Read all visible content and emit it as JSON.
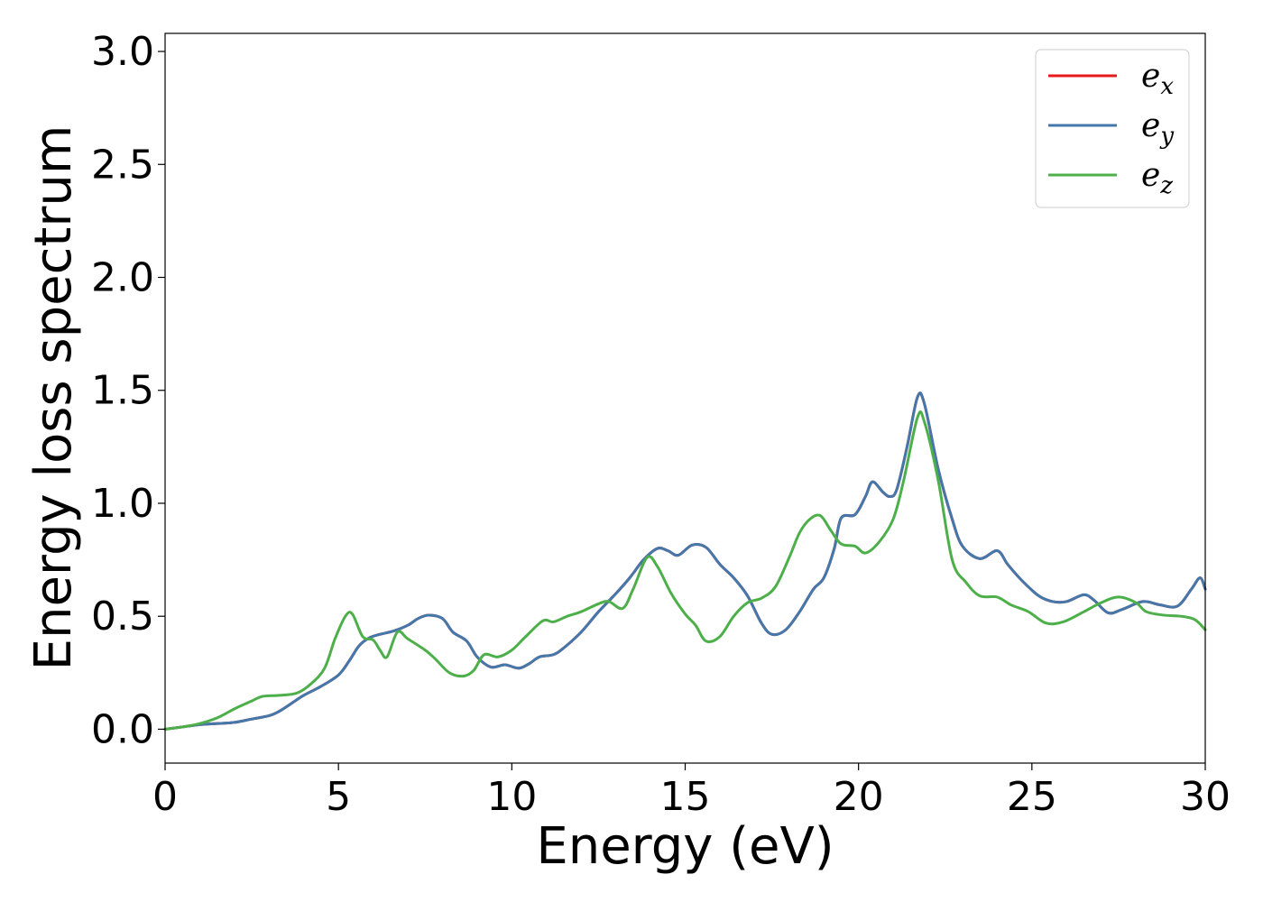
{
  "chart_data": {
    "type": "line",
    "xlabel": "Energy (eV)",
    "ylabel": "Energy loss spectrum",
    "xlim": [
      0,
      30
    ],
    "ylim": [
      -0.15,
      3.08
    ],
    "xticks": [
      0,
      5,
      10,
      15,
      20,
      25,
      30
    ],
    "yticks": [
      0.0,
      0.5,
      1.0,
      1.5,
      2.0,
      2.5,
      3.0
    ],
    "xtick_labels": [
      "0",
      "5",
      "10",
      "15",
      "20",
      "25",
      "30"
    ],
    "ytick_labels": [
      "0.0",
      "0.5",
      "1.0",
      "1.5",
      "2.0",
      "2.5",
      "3.0"
    ],
    "grid": false,
    "legend_position": "top-right",
    "series": [
      {
        "name": "e_x",
        "legend_base": "e",
        "legend_sub": "x",
        "color": "#e41a1c",
        "points": [
          [
            0,
            0.0
          ],
          [
            0.5,
            0.01
          ],
          [
            1,
            0.02
          ],
          [
            1.5,
            0.025
          ],
          [
            2,
            0.03
          ],
          [
            2.5,
            0.045
          ],
          [
            3,
            0.06
          ],
          [
            3.3,
            0.08
          ],
          [
            3.7,
            0.12
          ],
          [
            4,
            0.15
          ],
          [
            4.5,
            0.19
          ],
          [
            5,
            0.24
          ],
          [
            5.3,
            0.3
          ],
          [
            5.6,
            0.37
          ],
          [
            5.9,
            0.405
          ],
          [
            6.2,
            0.42
          ],
          [
            6.6,
            0.435
          ],
          [
            7,
            0.46
          ],
          [
            7.3,
            0.49
          ],
          [
            7.6,
            0.505
          ],
          [
            8,
            0.49
          ],
          [
            8.3,
            0.43
          ],
          [
            8.7,
            0.39
          ],
          [
            9,
            0.32
          ],
          [
            9.4,
            0.275
          ],
          [
            9.8,
            0.285
          ],
          [
            10.2,
            0.27
          ],
          [
            10.5,
            0.29
          ],
          [
            10.8,
            0.32
          ],
          [
            11.2,
            0.33
          ],
          [
            11.5,
            0.36
          ],
          [
            12,
            0.43
          ],
          [
            12.5,
            0.52
          ],
          [
            13,
            0.6
          ],
          [
            13.4,
            0.67
          ],
          [
            13.8,
            0.75
          ],
          [
            14.2,
            0.8
          ],
          [
            14.5,
            0.79
          ],
          [
            14.8,
            0.77
          ],
          [
            15.2,
            0.815
          ],
          [
            15.6,
            0.805
          ],
          [
            16,
            0.73
          ],
          [
            16.4,
            0.67
          ],
          [
            16.8,
            0.59
          ],
          [
            17.2,
            0.47
          ],
          [
            17.5,
            0.42
          ],
          [
            17.9,
            0.44
          ],
          [
            18.3,
            0.52
          ],
          [
            18.7,
            0.62
          ],
          [
            19,
            0.67
          ],
          [
            19.3,
            0.8
          ],
          [
            19.5,
            0.935
          ],
          [
            19.9,
            0.95
          ],
          [
            20.2,
            1.03
          ],
          [
            20.4,
            1.095
          ],
          [
            20.7,
            1.05
          ],
          [
            20.9,
            1.03
          ],
          [
            21.1,
            1.06
          ],
          [
            21.4,
            1.25
          ],
          [
            21.7,
            1.47
          ],
          [
            21.9,
            1.44
          ],
          [
            22.3,
            1.15
          ],
          [
            22.7,
            0.93
          ],
          [
            23,
            0.81
          ],
          [
            23.5,
            0.755
          ],
          [
            24,
            0.79
          ],
          [
            24.3,
            0.73
          ],
          [
            24.7,
            0.66
          ],
          [
            25.2,
            0.59
          ],
          [
            25.6,
            0.565
          ],
          [
            26,
            0.565
          ],
          [
            26.5,
            0.595
          ],
          [
            26.8,
            0.57
          ],
          [
            27.2,
            0.515
          ],
          [
            27.6,
            0.53
          ],
          [
            28.2,
            0.565
          ],
          [
            28.7,
            0.55
          ],
          [
            29.2,
            0.545
          ],
          [
            29.6,
            0.62
          ],
          [
            29.85,
            0.67
          ],
          [
            30,
            0.62
          ]
        ]
      },
      {
        "name": "e_y",
        "legend_base": "e",
        "legend_sub": "y",
        "color": "#4477aa",
        "points": [
          [
            0,
            0.0
          ],
          [
            0.5,
            0.01
          ],
          [
            1,
            0.02
          ],
          [
            1.5,
            0.025
          ],
          [
            2,
            0.03
          ],
          [
            2.5,
            0.045
          ],
          [
            3,
            0.06
          ],
          [
            3.3,
            0.08
          ],
          [
            3.7,
            0.12
          ],
          [
            4,
            0.15
          ],
          [
            4.5,
            0.19
          ],
          [
            5,
            0.24
          ],
          [
            5.3,
            0.3
          ],
          [
            5.6,
            0.37
          ],
          [
            5.9,
            0.405
          ],
          [
            6.2,
            0.42
          ],
          [
            6.6,
            0.435
          ],
          [
            7,
            0.46
          ],
          [
            7.3,
            0.49
          ],
          [
            7.6,
            0.505
          ],
          [
            8,
            0.49
          ],
          [
            8.3,
            0.43
          ],
          [
            8.7,
            0.39
          ],
          [
            9,
            0.32
          ],
          [
            9.4,
            0.275
          ],
          [
            9.8,
            0.285
          ],
          [
            10.2,
            0.27
          ],
          [
            10.5,
            0.29
          ],
          [
            10.8,
            0.32
          ],
          [
            11.2,
            0.33
          ],
          [
            11.5,
            0.36
          ],
          [
            12,
            0.43
          ],
          [
            12.5,
            0.52
          ],
          [
            13,
            0.6
          ],
          [
            13.4,
            0.67
          ],
          [
            13.8,
            0.75
          ],
          [
            14.2,
            0.8
          ],
          [
            14.5,
            0.79
          ],
          [
            14.8,
            0.77
          ],
          [
            15.2,
            0.815
          ],
          [
            15.6,
            0.805
          ],
          [
            16,
            0.73
          ],
          [
            16.4,
            0.67
          ],
          [
            16.8,
            0.59
          ],
          [
            17.2,
            0.47
          ],
          [
            17.5,
            0.42
          ],
          [
            17.9,
            0.44
          ],
          [
            18.3,
            0.52
          ],
          [
            18.7,
            0.62
          ],
          [
            19,
            0.67
          ],
          [
            19.3,
            0.8
          ],
          [
            19.5,
            0.935
          ],
          [
            19.9,
            0.95
          ],
          [
            20.2,
            1.03
          ],
          [
            20.4,
            1.095
          ],
          [
            20.7,
            1.05
          ],
          [
            20.9,
            1.03
          ],
          [
            21.1,
            1.06
          ],
          [
            21.4,
            1.25
          ],
          [
            21.7,
            1.47
          ],
          [
            21.9,
            1.44
          ],
          [
            22.3,
            1.15
          ],
          [
            22.7,
            0.93
          ],
          [
            23,
            0.81
          ],
          [
            23.5,
            0.755
          ],
          [
            24,
            0.79
          ],
          [
            24.3,
            0.73
          ],
          [
            24.7,
            0.66
          ],
          [
            25.2,
            0.59
          ],
          [
            25.6,
            0.565
          ],
          [
            26,
            0.565
          ],
          [
            26.5,
            0.595
          ],
          [
            26.8,
            0.57
          ],
          [
            27.2,
            0.515
          ],
          [
            27.6,
            0.53
          ],
          [
            28.2,
            0.565
          ],
          [
            28.7,
            0.55
          ],
          [
            29.2,
            0.545
          ],
          [
            29.6,
            0.62
          ],
          [
            29.85,
            0.67
          ],
          [
            30,
            0.62
          ]
        ]
      },
      {
        "name": "e_z",
        "legend_base": "e",
        "legend_sub": "z",
        "color": "#4daf4a",
        "points": [
          [
            0,
            0.0
          ],
          [
            0.5,
            0.01
          ],
          [
            1,
            0.025
          ],
          [
            1.5,
            0.05
          ],
          [
            2,
            0.09
          ],
          [
            2.5,
            0.125
          ],
          [
            2.8,
            0.145
          ],
          [
            3.3,
            0.15
          ],
          [
            3.8,
            0.16
          ],
          [
            4.2,
            0.2
          ],
          [
            4.6,
            0.27
          ],
          [
            4.9,
            0.4
          ],
          [
            5.2,
            0.5
          ],
          [
            5.4,
            0.51
          ],
          [
            5.7,
            0.41
          ],
          [
            6,
            0.395
          ],
          [
            6.2,
            0.35
          ],
          [
            6.4,
            0.32
          ],
          [
            6.7,
            0.43
          ],
          [
            7,
            0.4
          ],
          [
            7.5,
            0.35
          ],
          [
            7.8,
            0.31
          ],
          [
            8.2,
            0.25
          ],
          [
            8.6,
            0.235
          ],
          [
            8.9,
            0.26
          ],
          [
            9.2,
            0.33
          ],
          [
            9.6,
            0.32
          ],
          [
            10,
            0.35
          ],
          [
            10.4,
            0.41
          ],
          [
            10.9,
            0.48
          ],
          [
            11.2,
            0.475
          ],
          [
            11.6,
            0.5
          ],
          [
            12,
            0.52
          ],
          [
            12.5,
            0.555
          ],
          [
            12.8,
            0.565
          ],
          [
            13.2,
            0.535
          ],
          [
            13.5,
            0.62
          ],
          [
            13.9,
            0.76
          ],
          [
            14.2,
            0.72
          ],
          [
            14.6,
            0.6
          ],
          [
            15,
            0.51
          ],
          [
            15.3,
            0.46
          ],
          [
            15.6,
            0.39
          ],
          [
            16,
            0.41
          ],
          [
            16.4,
            0.5
          ],
          [
            16.8,
            0.56
          ],
          [
            17.2,
            0.58
          ],
          [
            17.6,
            0.63
          ],
          [
            18,
            0.76
          ],
          [
            18.3,
            0.87
          ],
          [
            18.6,
            0.93
          ],
          [
            18.9,
            0.945
          ],
          [
            19.2,
            0.88
          ],
          [
            19.5,
            0.82
          ],
          [
            19.9,
            0.81
          ],
          [
            20.2,
            0.78
          ],
          [
            20.6,
            0.83
          ],
          [
            21,
            0.93
          ],
          [
            21.3,
            1.1
          ],
          [
            21.7,
            1.38
          ],
          [
            21.9,
            1.36
          ],
          [
            22.3,
            1.1
          ],
          [
            22.7,
            0.75
          ],
          [
            23.1,
            0.65
          ],
          [
            23.5,
            0.59
          ],
          [
            24,
            0.585
          ],
          [
            24.4,
            0.55
          ],
          [
            24.9,
            0.52
          ],
          [
            25.4,
            0.47
          ],
          [
            25.9,
            0.475
          ],
          [
            26.5,
            0.52
          ],
          [
            27,
            0.56
          ],
          [
            27.5,
            0.585
          ],
          [
            28,
            0.56
          ],
          [
            28.3,
            0.52
          ],
          [
            28.8,
            0.505
          ],
          [
            29.3,
            0.5
          ],
          [
            29.7,
            0.485
          ],
          [
            30,
            0.44
          ]
        ]
      }
    ]
  }
}
